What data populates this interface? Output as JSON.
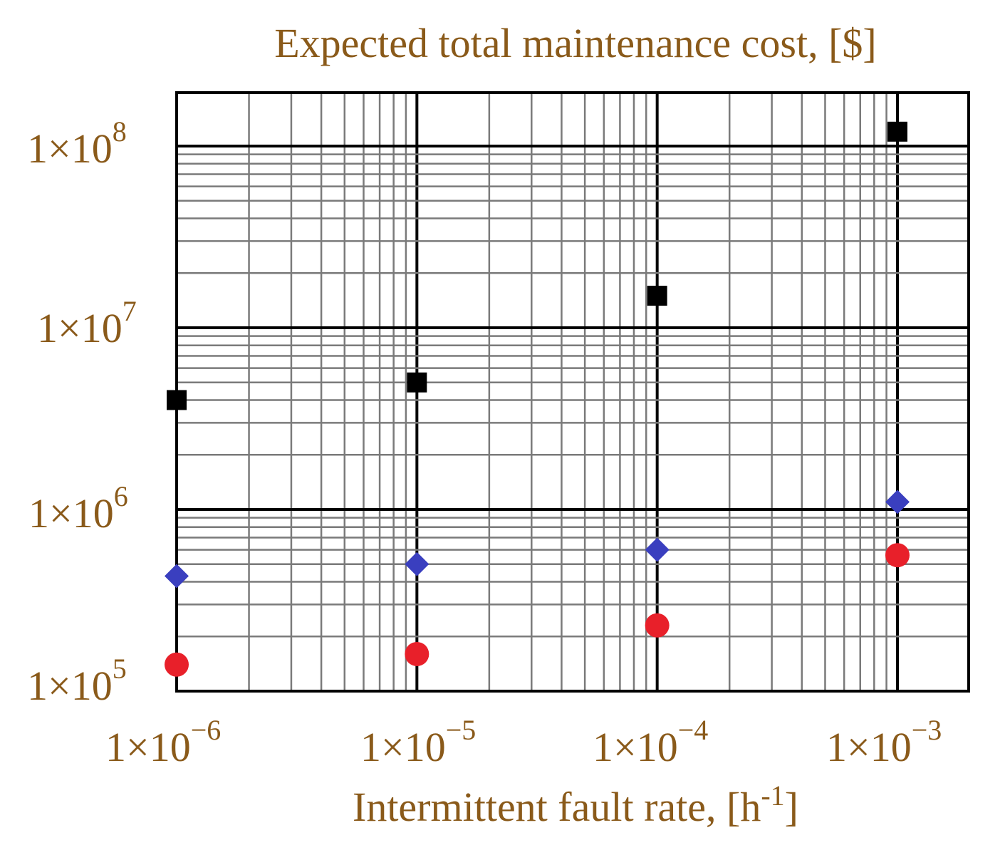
{
  "chart_data": {
    "type": "scatter",
    "title": "Expected total maintenance cost, [$]",
    "xlabel": "Intermittent fault rate, [h",
    "xlabel_sup": "-1",
    "xlabel_end": "]",
    "x_scale": "log",
    "y_scale": "log",
    "xlim": [
      1e-06,
      0.001
    ],
    "ylim": [
      100000.0,
      100000000.0
    ],
    "grid": true,
    "legend": "none",
    "x_ticks": [
      {
        "base": "1×10",
        "exp": "−6",
        "value": 1e-06
      },
      {
        "base": "1×10",
        "exp": "−5",
        "value": 1e-05
      },
      {
        "base": "1×10",
        "exp": "−4",
        "value": 0.0001
      },
      {
        "base": "1×10",
        "exp": "−3",
        "value": 0.001
      }
    ],
    "y_ticks": [
      {
        "base": "1×10",
        "exp": "8",
        "value": 100000000.0
      },
      {
        "base": "1×10",
        "exp": "7",
        "value": 10000000.0
      },
      {
        "base": "1×10",
        "exp": "6",
        "value": 1000000.0
      },
      {
        "base": "1×10",
        "exp": "5",
        "value": 100000.0
      }
    ],
    "colors": {
      "text": "#8a5a1a",
      "grid_major": "#000000",
      "grid_minor": "#7a7a7a"
    },
    "series": [
      {
        "marker": "square",
        "color": "#000000",
        "x": [
          1e-06,
          1e-05,
          0.0001,
          0.001
        ],
        "y": [
          4000000,
          5000000,
          15000000,
          120000000
        ]
      },
      {
        "marker": "diamond",
        "color": "#3a3fbf",
        "x": [
          1e-06,
          1e-05,
          0.0001,
          0.001
        ],
        "y": [
          430000,
          500000,
          600000,
          1100000
        ]
      },
      {
        "marker": "circle",
        "color": "#e8202a",
        "x": [
          1e-06,
          1e-05,
          0.0001,
          0.001
        ],
        "y": [
          140000,
          160000,
          230000,
          560000
        ]
      }
    ]
  }
}
